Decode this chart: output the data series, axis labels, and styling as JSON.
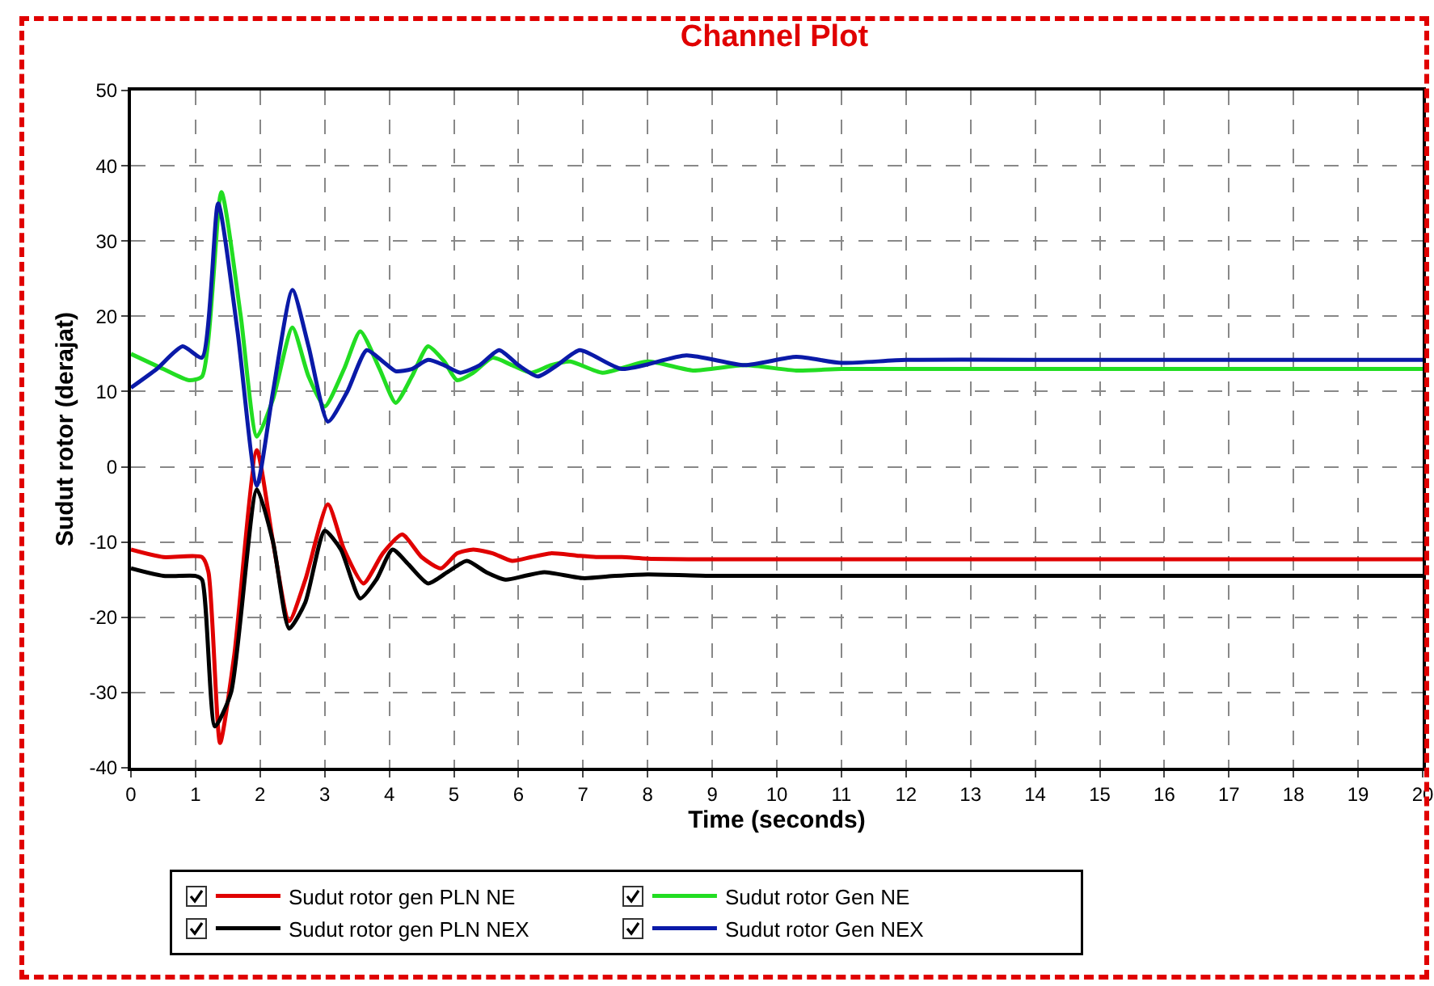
{
  "chart_data": {
    "type": "line",
    "title": "Channel Plot",
    "xlabel": "Time (seconds)",
    "ylabel": "Sudut rotor (derajat)",
    "xlim": [
      0,
      20
    ],
    "xticks": [
      0,
      1,
      2,
      3,
      4,
      5,
      6,
      7,
      8,
      9,
      10,
      11,
      12,
      13,
      14,
      15,
      16,
      17,
      18,
      19,
      20
    ],
    "ylim": [
      -40,
      50
    ],
    "yticks": [
      -40,
      -30,
      -20,
      -10,
      0,
      10,
      20,
      30,
      40,
      50
    ],
    "grid": true,
    "legend": "bottom",
    "marker": "none",
    "line_style": "solid",
    "series": [
      {
        "name": "Sudut rotor gen PLN NE",
        "color": "#e00000",
        "x": [
          0,
          0.5,
          1.1,
          1.2,
          1.38,
          1.6,
          1.95,
          2.2,
          2.45,
          2.7,
          3.05,
          3.3,
          3.6,
          3.9,
          4.2,
          4.5,
          4.8,
          5.05,
          5.3,
          5.6,
          5.9,
          6.2,
          6.5,
          6.9,
          7.2,
          7.6,
          8,
          9,
          10,
          12,
          15,
          20
        ],
        "values": [
          -11,
          -12,
          -12,
          -14,
          -36.7,
          -25,
          2.2,
          -10,
          -20.5,
          -15,
          -5,
          -11,
          -15.5,
          -11.5,
          -9,
          -12,
          -13.5,
          -11.5,
          -11,
          -11.5,
          -12.5,
          -12,
          -11.5,
          -11.8,
          -12,
          -12,
          -12.2,
          -12.3,
          -12.3,
          -12.3,
          -12.3,
          -12.3
        ]
      },
      {
        "name": "Sudut rotor Gen NE",
        "color": "#22dd22",
        "x": [
          0,
          0.5,
          0.9,
          1.1,
          1.4,
          1.7,
          1.95,
          2.2,
          2.5,
          2.75,
          3.0,
          3.3,
          3.55,
          3.85,
          4.1,
          4.35,
          4.6,
          4.85,
          5.05,
          5.3,
          5.6,
          5.9,
          6.2,
          6.5,
          6.8,
          7.3,
          8,
          8.7,
          9.5,
          10.3,
          11,
          12,
          15,
          20
        ],
        "values": [
          15,
          13,
          11.5,
          12,
          36.5,
          20,
          4,
          9,
          18.5,
          12,
          8,
          13,
          18,
          13,
          8.5,
          12,
          16,
          14,
          11.5,
          12.5,
          14.5,
          13.5,
          12.5,
          13.5,
          14,
          12.5,
          14,
          12.8,
          13.5,
          12.8,
          13,
          13,
          13,
          13
        ]
      },
      {
        "name": "Sudut rotor gen PLN NEX",
        "color": "#000000",
        "x": [
          0,
          0.5,
          1.0,
          1.1,
          1.3,
          1.55,
          1.95,
          2.2,
          2.45,
          2.7,
          3.0,
          3.25,
          3.55,
          3.8,
          4.05,
          4.3,
          4.6,
          4.9,
          5.2,
          5.5,
          5.8,
          6.1,
          6.4,
          7,
          7.5,
          8,
          9,
          10,
          12,
          15,
          20
        ],
        "values": [
          -13.5,
          -14.5,
          -14.5,
          -15,
          -34.5,
          -30,
          -3,
          -10,
          -21.5,
          -18,
          -8.5,
          -11,
          -17.5,
          -15,
          -11,
          -13,
          -15.5,
          -14,
          -12.5,
          -14,
          -15,
          -14.5,
          -14,
          -14.8,
          -14.5,
          -14.3,
          -14.5,
          -14.5,
          -14.5,
          -14.5,
          -14.5
        ]
      },
      {
        "name": "Sudut rotor Gen NEX",
        "color": "#0a1aa8",
        "x": [
          0,
          0.4,
          0.8,
          1.1,
          1.35,
          1.65,
          1.95,
          2.2,
          2.5,
          2.75,
          3.05,
          3.35,
          3.65,
          3.9,
          4.1,
          4.35,
          4.6,
          4.85,
          5.1,
          5.4,
          5.7,
          6.0,
          6.3,
          6.6,
          6.95,
          7.6,
          8.6,
          9.5,
          10.3,
          11,
          12,
          15,
          20
        ],
        "values": [
          10.5,
          13,
          16,
          14.5,
          35,
          18,
          -2.5,
          10,
          23.5,
          16,
          6,
          10,
          15.5,
          14,
          12.7,
          13,
          14.2,
          13.5,
          12.5,
          13.5,
          15.5,
          13.5,
          12,
          13.5,
          15.5,
          13,
          14.8,
          13.5,
          14.6,
          13.8,
          14.2,
          14.2,
          14.2
        ]
      }
    ]
  }
}
